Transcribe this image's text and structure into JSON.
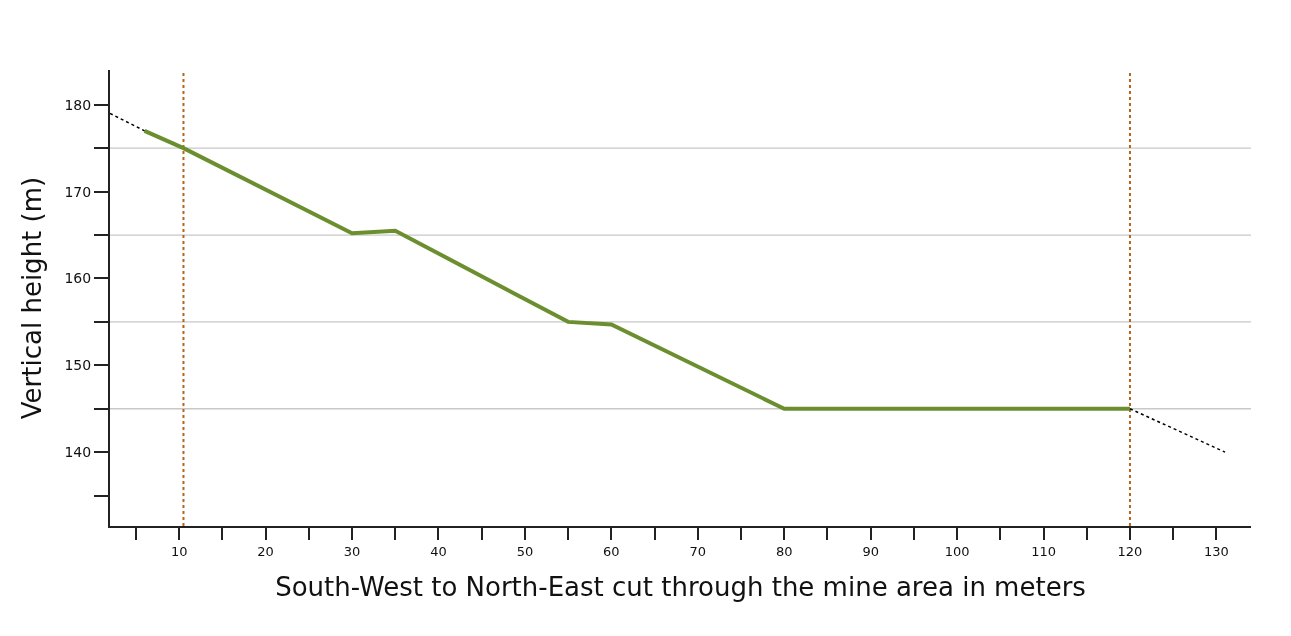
{
  "chart_data": {
    "type": "line",
    "xlabel": "South-West to North-East cut through the mine area in meters",
    "ylabel": "Vertical height (m)",
    "series": [
      {
        "color": "#6b8e2f",
        "x": [
          6,
          10.5,
          30,
          35,
          55,
          60,
          80,
          120
        ],
        "values": [
          177,
          175,
          165.2,
          165.5,
          155,
          154.7,
          145,
          145
        ],
        "line_style": "solid"
      },
      {
        "color": "#000000",
        "x": [
          2,
          6
        ],
        "values": [
          179,
          177
        ],
        "line_style": "dotted"
      },
      {
        "color": "#000000",
        "x": [
          120,
          131
        ],
        "values": [
          145,
          140
        ],
        "line_style": "dotted"
      }
    ],
    "xlim": [
      2,
      134
    ],
    "ylim": [
      131.5,
      184
    ],
    "xticks": [
      {
        "value": 5,
        "label": null
      },
      10,
      {
        "value": 15,
        "label": null
      },
      20,
      {
        "value": 25,
        "label": null
      },
      30,
      {
        "value": 35,
        "label": null
      },
      40,
      {
        "value": 45,
        "label": null
      },
      50,
      {
        "value": 55,
        "label": null
      },
      60,
      {
        "value": 65,
        "label": null
      },
      70,
      {
        "value": 75,
        "label": null
      },
      80,
      {
        "value": 85,
        "label": null
      },
      90,
      {
        "value": 95,
        "label": null
      },
      100,
      {
        "value": 105,
        "label": null
      },
      110,
      {
        "value": 115,
        "label": null
      },
      120,
      {
        "value": 125,
        "label": null
      },
      130
    ],
    "yticks": [
      {
        "value": 135,
        "label": null
      },
      140,
      {
        "value": 145,
        "label": null
      },
      150,
      {
        "value": 155,
        "label": null
      },
      160,
      {
        "value": 165,
        "label": null
      },
      170,
      {
        "value": 175,
        "label": null
      },
      180
    ],
    "ref_lines": [
      {
        "axis": "y",
        "value": 175,
        "color": "#c8c8c8",
        "line_style": "solid"
      },
      {
        "axis": "y",
        "value": 165,
        "color": "#c8c8c8",
        "line_style": "solid"
      },
      {
        "axis": "y",
        "value": 155,
        "color": "#c8c8c8",
        "line_style": "solid"
      },
      {
        "axis": "y",
        "value": 145,
        "color": "#c8c8c8",
        "line_style": "solid"
      },
      {
        "axis": "x",
        "value": 10.5,
        "color": "#b5651d",
        "line_style": "dotted"
      },
      {
        "axis": "x",
        "value": 120,
        "color": "#b5651d",
        "line_style": "dotted"
      }
    ],
    "grid": false
  }
}
